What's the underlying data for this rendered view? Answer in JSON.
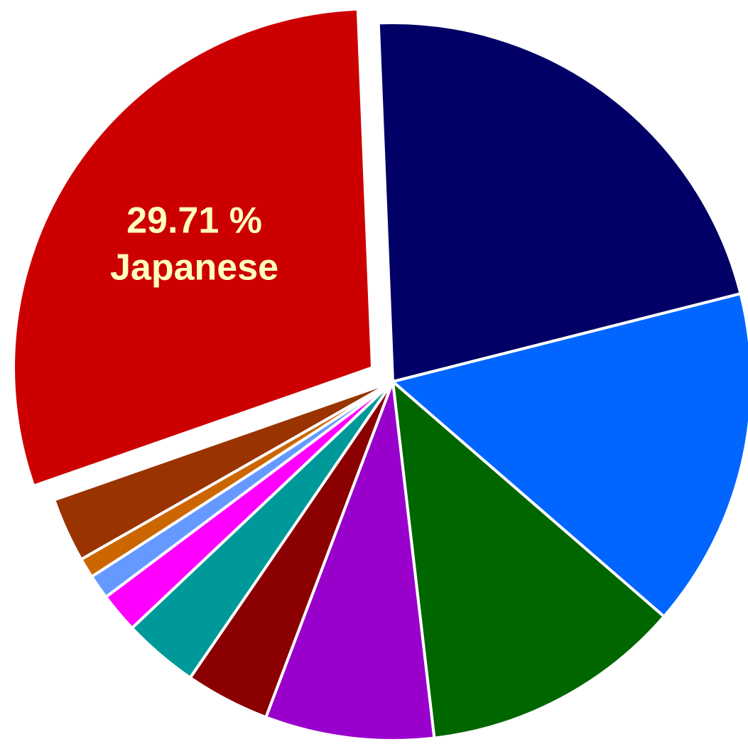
{
  "chart_data": {
    "type": "pie",
    "categories": [
      null,
      null,
      null,
      null,
      null,
      null,
      null,
      null,
      null,
      null,
      "Japanese"
    ],
    "values": [
      21.7,
      15.3,
      11.8,
      7.6,
      3.8,
      3.4,
      1.8,
      1.1,
      0.9,
      2.9,
      29.71
    ],
    "value_labels": [
      null,
      null,
      null,
      null,
      null,
      null,
      null,
      null,
      null,
      null,
      "29.71 %"
    ],
    "colors": [
      "#000066",
      "#0066ff",
      "#006600",
      "#9900cc",
      "#8b0000",
      "#009999",
      "#ff00ff",
      "#6699ff",
      "#cc6600",
      "#993300",
      "#cc0000"
    ],
    "exploded": [
      10
    ]
  }
}
